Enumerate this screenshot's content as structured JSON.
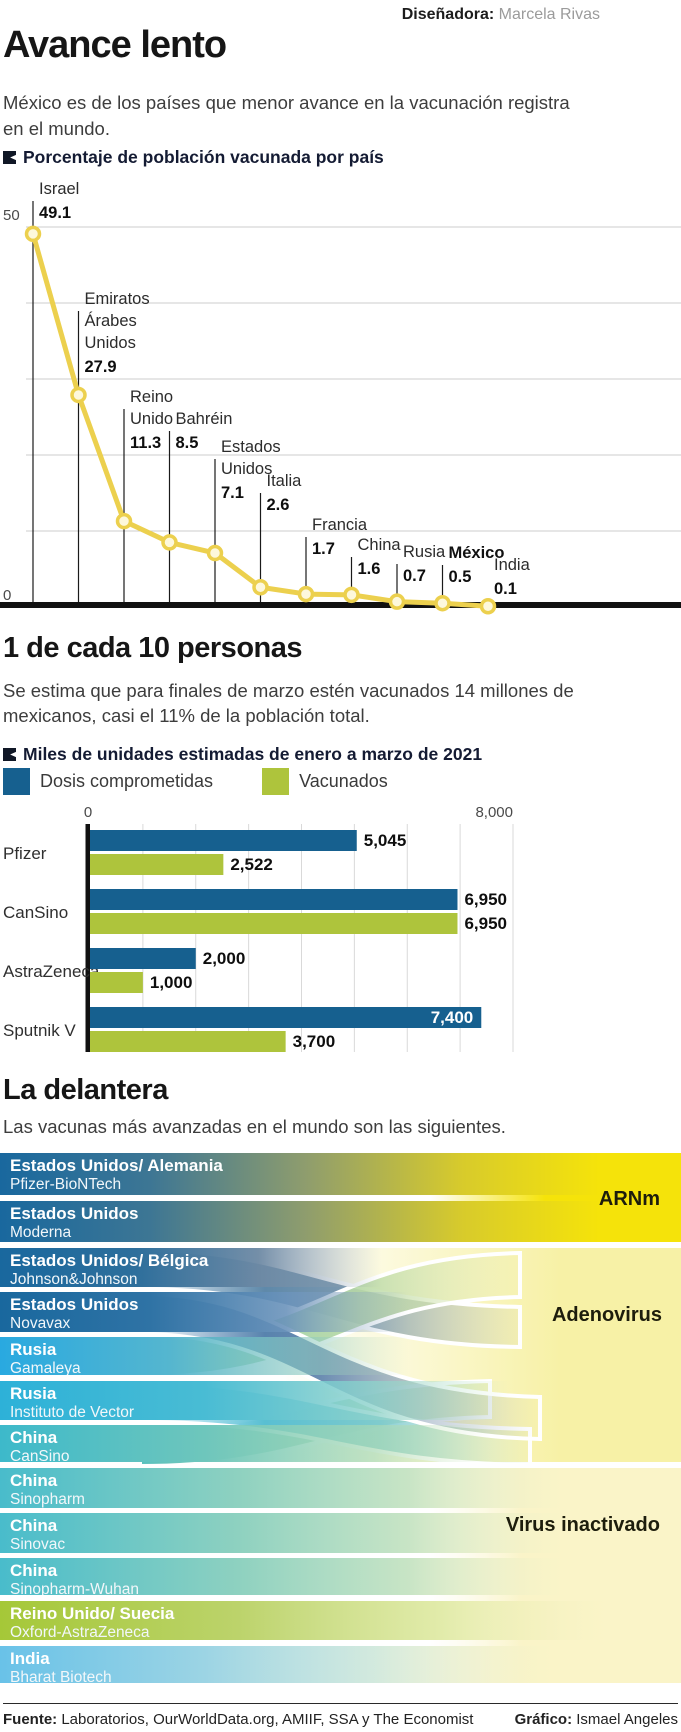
{
  "header": {
    "designer_label": "Diseñadora:",
    "designer_name": "Marcela Rivas"
  },
  "intro": {
    "title": "Avance lento",
    "line1": "México es de los países que menor avance en la vacunación registra",
    "line2": "en el mundo."
  },
  "section2": {
    "title": "1 de cada 10 personas",
    "body1": "Se estima que para finales de marzo estén vacunados 14 millones de",
    "body2": "mexicanos, casi el 11% de la población total."
  },
  "section3": {
    "title": "La delantera",
    "subtitle": "Las vacunas más avanzadas en el mundo son las siguientes."
  },
  "footer": {
    "source_label": "Fuente:",
    "source": "Laboratorios, OurWorldData.org, AMIIF, SSA y The Economist",
    "credit_label": "Gráfico:",
    "credit": "Ismael Angeles"
  },
  "chart_data": [
    {
      "type": "line",
      "title": "Porcentaje de población vacunada por país",
      "categories": [
        "Israel",
        "Emiratos Árabes Unidos",
        "Reino Unido",
        "Bahréin",
        "Estados Unidos",
        "Italia",
        "Francia",
        "China",
        "Rusia",
        "México",
        "India"
      ],
      "values": [
        49.1,
        27.9,
        11.3,
        8.5,
        7.1,
        2.6,
        1.7,
        1.6,
        0.7,
        0.5,
        0.1
      ],
      "highlight": "México",
      "ylim": [
        0,
        50
      ],
      "yticks": [
        0,
        10,
        20,
        30,
        40,
        50
      ],
      "ytick_labels": [
        "0",
        "50"
      ],
      "line_color": "#ecd04e",
      "grid": true
    },
    {
      "type": "bar",
      "title": "Miles de unidades estimadas de enero a marzo de 2021",
      "categories": [
        "Pfizer",
        "CanSino",
        "AstraZeneca",
        "Sputnik V"
      ],
      "series": [
        {
          "name": "Dosis comprometidas",
          "color": "#16608f",
          "values": [
            5045,
            6950,
            2000,
            7400
          ]
        },
        {
          "name": "Vacunados",
          "color": "#aec43c",
          "values": [
            2522,
            6950,
            1000,
            3700
          ]
        }
      ],
      "xlim": [
        0,
        8000
      ],
      "xtick_labels": [
        "0",
        "8,000"
      ],
      "grid": true
    },
    {
      "type": "sankey",
      "title": "La delantera",
      "rows": [
        {
          "country": "Estados Unidos/ Alemania",
          "vaccine": "Pfizer-BioNTech",
          "group": "ARNm",
          "color": "#19689e"
        },
        {
          "country": "Estados Unidos",
          "vaccine": "Moderna",
          "group": "ARNm",
          "color": "#19689e"
        },
        {
          "country": "Estados Unidos/ Bélgica",
          "vaccine": "Johnson&Johnson",
          "group": "Adenovirus",
          "color": "#19689e"
        },
        {
          "country": "Estados Unidos",
          "vaccine": "Novavax",
          "group": "Adenovirus",
          "color": "#19689e"
        },
        {
          "country": "Rusia",
          "vaccine": "Gamaleya",
          "group": "Adenovirus",
          "color": "#29a9e0"
        },
        {
          "country": "Rusia",
          "vaccine": "Instituto de Vector",
          "group": "Adenovirus",
          "color": "#2db1d8"
        },
        {
          "country": "China",
          "vaccine": "CanSino",
          "group": "Adenovirus",
          "color": "#3db9ca"
        },
        {
          "country": "China",
          "vaccine": "Sinopharm",
          "group": "Virus inactivado",
          "color": "#49bccb"
        },
        {
          "country": "China",
          "vaccine": "Sinovac",
          "group": "Virus inactivado",
          "color": "#49bccb"
        },
        {
          "country": "China",
          "vaccine": "Sinopharm-Wuhan",
          "group": "Virus inactivado",
          "color": "#49bccb"
        },
        {
          "country": "Reino Unido/ Suecia",
          "vaccine": "Oxford-AstraZeneca",
          "group": "Adenovirus",
          "color": "#a5c838"
        },
        {
          "country": "India",
          "vaccine": "Bharat Biotech",
          "group": "Virus inactivado",
          "color": "#69c2e8"
        }
      ],
      "categories": [
        {
          "label": "ARNm",
          "color": "#f5e30a"
        },
        {
          "label": "Adenovirus",
          "color": "#f7f1a6"
        },
        {
          "label": "Virus inactivado",
          "color": "#faf4c8"
        }
      ]
    }
  ]
}
